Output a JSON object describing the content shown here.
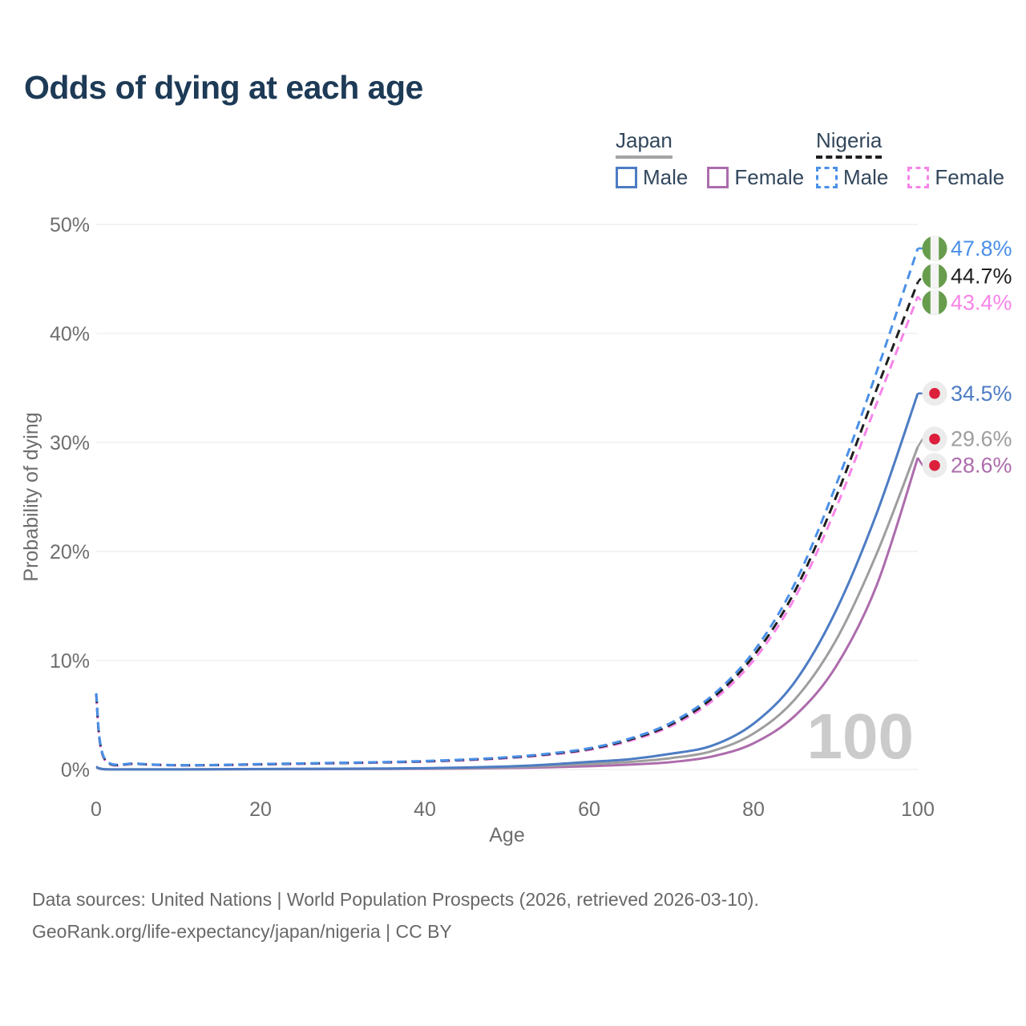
{
  "title": "Odds of dying at each age",
  "legend": {
    "groups": [
      {
        "label": "Japan",
        "line_style": "solid",
        "line_color": "#a3a3a3",
        "items": [
          {
            "label": "Male",
            "color": "#4d7cc3"
          },
          {
            "label": "Female",
            "color": "#ad6cac"
          }
        ]
      },
      {
        "label": "Nigeria",
        "line_style": "dashed",
        "line_color": "#1f1f1f",
        "items": [
          {
            "label": "Male",
            "color": "#4a90e8"
          },
          {
            "label": "Female",
            "color": "#f784e8"
          }
        ]
      }
    ]
  },
  "chart_data": {
    "type": "line",
    "title": "Odds of dying at each age",
    "xlabel": "Age",
    "ylabel": "Probability of dying",
    "xlim": [
      0,
      100
    ],
    "ylim": [
      0,
      50
    ],
    "grid": "horizontal",
    "legend_position": "top-right",
    "watermark": "100",
    "x_ticks": [
      {
        "label": "0",
        "value": 0
      },
      {
        "label": "20",
        "value": 20
      },
      {
        "label": "40",
        "value": 40
      },
      {
        "label": "60",
        "value": 60
      },
      {
        "label": "80",
        "value": 80
      },
      {
        "label": "100",
        "value": 100
      }
    ],
    "y_ticks": [
      {
        "label": "0%",
        "value": 0
      },
      {
        "label": "10%",
        "value": 10
      },
      {
        "label": "20%",
        "value": 20
      },
      {
        "label": "30%",
        "value": 30
      },
      {
        "label": "40%",
        "value": 40
      },
      {
        "label": "50%",
        "value": 50
      }
    ],
    "x": [
      0,
      1,
      5,
      10,
      15,
      20,
      25,
      30,
      35,
      40,
      45,
      50,
      55,
      60,
      65,
      70,
      75,
      80,
      85,
      90,
      95,
      100
    ],
    "series": [
      {
        "name": "Nigeria Male",
        "color": "#4a90e8",
        "dash": true,
        "flag": "nigeria",
        "end_label": "47.8%",
        "values": [
          7.0,
          1.05,
          0.55,
          0.4,
          0.42,
          0.5,
          0.56,
          0.62,
          0.68,
          0.78,
          0.92,
          1.12,
          1.45,
          1.95,
          2.85,
          4.3,
          6.8,
          10.8,
          17.0,
          26.0,
          36.5,
          47.8
        ]
      },
      {
        "name": "Nigeria Both sexes",
        "color": "#1f1f1f",
        "dash": true,
        "flag": "nigeria",
        "end_label": "44.7%",
        "values": [
          6.9,
          1.0,
          0.53,
          0.39,
          0.41,
          0.48,
          0.54,
          0.6,
          0.66,
          0.75,
          0.89,
          1.08,
          1.4,
          1.88,
          2.75,
          4.15,
          6.55,
          10.4,
          16.3,
          24.9,
          34.9,
          44.7
        ]
      },
      {
        "name": "Nigeria Female",
        "color": "#f784e8",
        "dash": true,
        "flag": "nigeria",
        "end_label": "43.4%",
        "values": [
          6.8,
          0.95,
          0.51,
          0.38,
          0.4,
          0.46,
          0.52,
          0.58,
          0.64,
          0.72,
          0.85,
          1.04,
          1.34,
          1.8,
          2.64,
          4.0,
          6.3,
          10.0,
          15.7,
          23.9,
          33.6,
          43.4
        ]
      },
      {
        "name": "Japan Male",
        "color": "#4d7cc3",
        "dash": false,
        "flag": "japan",
        "end_label": "34.5%",
        "values": [
          0.25,
          0.03,
          0.01,
          0.01,
          0.03,
          0.05,
          0.06,
          0.07,
          0.09,
          0.12,
          0.18,
          0.28,
          0.45,
          0.7,
          0.95,
          1.45,
          2.2,
          4.2,
          8.0,
          14.5,
          23.5,
          34.5
        ]
      },
      {
        "name": "Japan Both sexes",
        "color": "#9e9e9e",
        "dash": false,
        "flag": "japan",
        "end_label": "29.6%",
        "values": [
          0.22,
          0.025,
          0.01,
          0.01,
          0.02,
          0.04,
          0.05,
          0.06,
          0.07,
          0.09,
          0.13,
          0.2,
          0.32,
          0.5,
          0.7,
          1.05,
          1.7,
          3.3,
          6.4,
          11.8,
          19.8,
          29.6
        ]
      },
      {
        "name": "Japan Female",
        "color": "#ad6cac",
        "dash": false,
        "flag": "japan",
        "end_label": "28.6%",
        "values": [
          0.2,
          0.02,
          0.008,
          0.008,
          0.015,
          0.025,
          0.03,
          0.04,
          0.05,
          0.06,
          0.09,
          0.14,
          0.2,
          0.3,
          0.45,
          0.68,
          1.2,
          2.4,
          4.9,
          9.4,
          16.9,
          28.6
        ]
      }
    ],
    "flag_colors": {
      "nigeria_green": "#679c4c",
      "nigeria_white": "#f4f4f4",
      "japan_bg": "#ececec",
      "japan_red": "#dc1f3d"
    },
    "style_colors": {
      "grid": "#efefef",
      "tick_text": "#6e6e6e",
      "watermark": "#cbcbcb"
    }
  },
  "footer": {
    "line1": "Data sources: United Nations | World Population Prospects (2026, retrieved 2026-03-10).",
    "line2": "GeoRank.org/life-expectancy/japan/nigeria | CC BY"
  }
}
